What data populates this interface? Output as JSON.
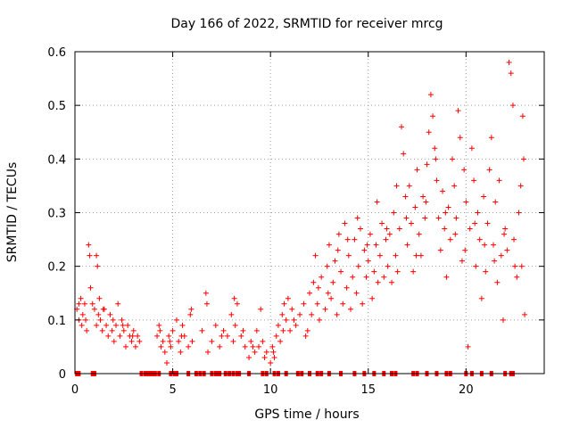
{
  "chart_data": {
    "type": "scatter",
    "title": "Day 166 of 2022, SRMTID for receiver mrcg",
    "xlabel": "GPS time / hours",
    "ylabel": "SRMTID / TECUs",
    "xlim": [
      0,
      24
    ],
    "ylim": [
      0,
      0.6
    ],
    "xticks": [
      "0",
      "5",
      "10",
      "15",
      "20"
    ],
    "yticks": [
      "0",
      "0.1",
      "0.2",
      "0.3",
      "0.4",
      "0.5",
      "0.6"
    ],
    "grid": true,
    "marker": "plus",
    "color": "#ff0000",
    "series": [
      {
        "name": "SRMTID",
        "points": [
          [
            0.1,
            0.12
          ],
          [
            0.2,
            0.1
          ],
          [
            0.3,
            0.14
          ],
          [
            0.35,
            0.09
          ],
          [
            0.4,
            0.11
          ],
          [
            0.5,
            0.13
          ],
          [
            0.6,
            0.08
          ],
          [
            0.7,
            0.24
          ],
          [
            0.75,
            0.22
          ],
          [
            0.8,
            0.16
          ],
          [
            0.9,
            0.13
          ],
          [
            1.0,
            0.12
          ],
          [
            1.1,
            0.09
          ],
          [
            1.1,
            0.22
          ],
          [
            1.15,
            0.2
          ],
          [
            1.2,
            0.11
          ],
          [
            1.3,
            0.1
          ],
          [
            1.4,
            0.08
          ],
          [
            1.5,
            0.12
          ],
          [
            1.6,
            0.09
          ],
          [
            1.7,
            0.07
          ],
          [
            1.8,
            0.11
          ],
          [
            1.9,
            0.08
          ],
          [
            2.0,
            0.06
          ],
          [
            2.1,
            0.09
          ],
          [
            2.2,
            0.13
          ],
          [
            2.3,
            0.07
          ],
          [
            2.4,
            0.1
          ],
          [
            2.5,
            0.08
          ],
          [
            2.6,
            0.05
          ],
          [
            2.7,
            0.09
          ],
          [
            2.8,
            0.07
          ],
          [
            2.9,
            0.06
          ],
          [
            3.0,
            0.08
          ],
          [
            3.1,
            0.05
          ],
          [
            3.2,
            0.07
          ],
          [
            3.3,
            0.06
          ],
          [
            4.2,
            0.07
          ],
          [
            4.3,
            0.09
          ],
          [
            4.4,
            0.05
          ],
          [
            4.5,
            0.06
          ],
          [
            4.6,
            0.04
          ],
          [
            4.7,
            0.02
          ],
          [
            4.8,
            0.07
          ],
          [
            4.9,
            0.05
          ],
          [
            5.0,
            0.08
          ],
          [
            5.2,
            0.1
          ],
          [
            5.3,
            0.06
          ],
          [
            5.4,
            0.04
          ],
          [
            5.5,
            0.09
          ],
          [
            5.6,
            0.07
          ],
          [
            5.8,
            0.05
          ],
          [
            5.9,
            0.11
          ],
          [
            6.0,
            0.06
          ],
          [
            6.5,
            0.08
          ],
          [
            6.7,
            0.15
          ],
          [
            6.8,
            0.04
          ],
          [
            7.0,
            0.06
          ],
          [
            7.2,
            0.09
          ],
          [
            7.4,
            0.05
          ],
          [
            7.6,
            0.08
          ],
          [
            7.8,
            0.07
          ],
          [
            8.0,
            0.11
          ],
          [
            8.1,
            0.06
          ],
          [
            8.2,
            0.09
          ],
          [
            8.3,
            0.13
          ],
          [
            8.5,
            0.07
          ],
          [
            8.7,
            0.05
          ],
          [
            8.9,
            0.03
          ],
          [
            9.0,
            0.06
          ],
          [
            9.2,
            0.04
          ],
          [
            9.3,
            0.08
          ],
          [
            9.4,
            0.05
          ],
          [
            9.5,
            0.12
          ],
          [
            9.6,
            0.06
          ],
          [
            9.8,
            0.04
          ],
          [
            10.0,
            0.02
          ],
          [
            10.1,
            0.05
          ],
          [
            10.2,
            0.03
          ],
          [
            10.3,
            0.07
          ],
          [
            10.4,
            0.09
          ],
          [
            10.5,
            0.06
          ],
          [
            10.6,
            0.11
          ],
          [
            10.7,
            0.13
          ],
          [
            10.8,
            0.1
          ],
          [
            10.9,
            0.14
          ],
          [
            11.0,
            0.08
          ],
          [
            11.1,
            0.12
          ],
          [
            11.3,
            0.09
          ],
          [
            11.5,
            0.11
          ],
          [
            11.7,
            0.13
          ],
          [
            11.9,
            0.08
          ],
          [
            12.0,
            0.15
          ],
          [
            12.1,
            0.11
          ],
          [
            12.2,
            0.17
          ],
          [
            12.3,
            0.22
          ],
          [
            12.4,
            0.13
          ],
          [
            12.5,
            0.1
          ],
          [
            12.6,
            0.18
          ],
          [
            12.8,
            0.12
          ],
          [
            12.9,
            0.2
          ],
          [
            13.0,
            0.24
          ],
          [
            13.1,
            0.14
          ],
          [
            13.2,
            0.17
          ],
          [
            13.3,
            0.21
          ],
          [
            13.4,
            0.11
          ],
          [
            13.5,
            0.26
          ],
          [
            13.6,
            0.19
          ],
          [
            13.7,
            0.13
          ],
          [
            13.8,
            0.28
          ],
          [
            13.9,
            0.16
          ],
          [
            14.0,
            0.22
          ],
          [
            14.1,
            0.12
          ],
          [
            14.2,
            0.18
          ],
          [
            14.3,
            0.25
          ],
          [
            14.4,
            0.15
          ],
          [
            14.5,
            0.2
          ],
          [
            14.6,
            0.27
          ],
          [
            14.7,
            0.13
          ],
          [
            14.8,
            0.23
          ],
          [
            14.9,
            0.18
          ],
          [
            15.0,
            0.21
          ],
          [
            15.1,
            0.26
          ],
          [
            15.2,
            0.14
          ],
          [
            15.3,
            0.19
          ],
          [
            15.4,
            0.24
          ],
          [
            15.5,
            0.17
          ],
          [
            15.6,
            0.22
          ],
          [
            15.7,
            0.28
          ],
          [
            15.8,
            0.18
          ],
          [
            15.9,
            0.25
          ],
          [
            16.0,
            0.2
          ],
          [
            16.1,
            0.26
          ],
          [
            16.2,
            0.17
          ],
          [
            16.3,
            0.3
          ],
          [
            16.4,
            0.22
          ],
          [
            16.5,
            0.19
          ],
          [
            16.6,
            0.27
          ],
          [
            16.7,
            0.46
          ],
          [
            16.8,
            0.41
          ],
          [
            16.9,
            0.33
          ],
          [
            17.0,
            0.24
          ],
          [
            17.1,
            0.35
          ],
          [
            17.2,
            0.28
          ],
          [
            17.3,
            0.19
          ],
          [
            17.4,
            0.31
          ],
          [
            17.5,
            0.38
          ],
          [
            17.6,
            0.26
          ],
          [
            17.7,
            0.22
          ],
          [
            17.8,
            0.33
          ],
          [
            17.9,
            0.29
          ],
          [
            18.0,
            0.39
          ],
          [
            18.1,
            0.45
          ],
          [
            18.2,
            0.52
          ],
          [
            18.3,
            0.48
          ],
          [
            18.4,
            0.42
          ],
          [
            18.5,
            0.36
          ],
          [
            18.6,
            0.29
          ],
          [
            18.7,
            0.23
          ],
          [
            18.8,
            0.34
          ],
          [
            18.9,
            0.27
          ],
          [
            19.0,
            0.18
          ],
          [
            19.1,
            0.31
          ],
          [
            19.2,
            0.25
          ],
          [
            19.3,
            0.4
          ],
          [
            19.4,
            0.35
          ],
          [
            19.5,
            0.29
          ],
          [
            19.6,
            0.49
          ],
          [
            19.7,
            0.44
          ],
          [
            19.8,
            0.21
          ],
          [
            19.9,
            0.38
          ],
          [
            20.0,
            0.32
          ],
          [
            20.1,
            0.05
          ],
          [
            20.2,
            0.27
          ],
          [
            20.3,
            0.42
          ],
          [
            20.4,
            0.36
          ],
          [
            20.5,
            0.2
          ],
          [
            20.6,
            0.3
          ],
          [
            20.7,
            0.25
          ],
          [
            20.8,
            0.14
          ],
          [
            20.9,
            0.33
          ],
          [
            21.0,
            0.19
          ],
          [
            21.1,
            0.28
          ],
          [
            21.2,
            0.38
          ],
          [
            21.3,
            0.44
          ],
          [
            21.4,
            0.24
          ],
          [
            21.5,
            0.32
          ],
          [
            21.6,
            0.17
          ],
          [
            21.7,
            0.36
          ],
          [
            21.8,
            0.22
          ],
          [
            21.9,
            0.1
          ],
          [
            22.0,
            0.27
          ],
          [
            22.1,
            0.23
          ],
          [
            22.2,
            0.58
          ],
          [
            22.3,
            0.56
          ],
          [
            22.4,
            0.5
          ],
          [
            22.5,
            0.2
          ],
          [
            22.6,
            0.18
          ],
          [
            22.7,
            0.3
          ],
          [
            22.8,
            0.35
          ],
          [
            22.9,
            0.48
          ],
          [
            22.95,
            0.4
          ],
          [
            23.0,
            0.11
          ],
          [
            0.2,
            0.13
          ],
          [
            0.55,
            0.1
          ],
          [
            1.25,
            0.14
          ],
          [
            1.45,
            0.12
          ],
          [
            1.95,
            0.1
          ],
          [
            2.45,
            0.09
          ],
          [
            2.95,
            0.07
          ],
          [
            4.35,
            0.08
          ],
          [
            4.85,
            0.06
          ],
          [
            5.45,
            0.07
          ],
          [
            5.95,
            0.12
          ],
          [
            6.75,
            0.13
          ],
          [
            7.5,
            0.07
          ],
          [
            8.15,
            0.14
          ],
          [
            8.6,
            0.08
          ],
          [
            9.1,
            0.05
          ],
          [
            9.7,
            0.03
          ],
          [
            10.15,
            0.04
          ],
          [
            10.65,
            0.08
          ],
          [
            11.2,
            0.1
          ],
          [
            11.8,
            0.07
          ],
          [
            12.45,
            0.16
          ],
          [
            12.95,
            0.15
          ],
          [
            13.45,
            0.23
          ],
          [
            13.95,
            0.25
          ],
          [
            14.45,
            0.29
          ],
          [
            14.95,
            0.24
          ],
          [
            15.45,
            0.32
          ],
          [
            15.95,
            0.27
          ],
          [
            16.45,
            0.35
          ],
          [
            16.95,
            0.29
          ],
          [
            17.45,
            0.22
          ],
          [
            17.95,
            0.32
          ],
          [
            18.45,
            0.4
          ],
          [
            18.95,
            0.3
          ],
          [
            19.45,
            0.26
          ],
          [
            19.95,
            0.23
          ],
          [
            20.45,
            0.28
          ],
          [
            20.95,
            0.24
          ],
          [
            21.45,
            0.21
          ],
          [
            21.95,
            0.26
          ],
          [
            22.45,
            0.25
          ],
          [
            22.85,
            0.2
          ]
        ],
        "zero_times": [
          0.1,
          0.2,
          0.9,
          1.0,
          3.4,
          3.6,
          3.7,
          3.8,
          3.9,
          4.0,
          4.1,
          4.3,
          4.9,
          5.1,
          5.2,
          5.8,
          6.2,
          6.4,
          6.6,
          7.0,
          7.2,
          7.3,
          7.4,
          7.7,
          7.9,
          8.1,
          8.3,
          8.4,
          8.9,
          9.6,
          9.8,
          10.2,
          10.4,
          10.8,
          11.4,
          11.6,
          12.0,
          12.4,
          12.6,
          13.0,
          13.6,
          14.3,
          14.8,
          15.3,
          15.8,
          16.2,
          16.4,
          17.3,
          17.5,
          18.0,
          18.5,
          19.0,
          19.2,
          20.0,
          20.3,
          20.8,
          21.3,
          22.0,
          22.3,
          22.4
        ]
      }
    ]
  }
}
